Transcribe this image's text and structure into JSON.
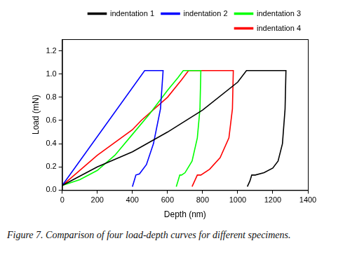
{
  "chart_data": {
    "type": "line",
    "x_label": "Depth (nm)",
    "y_label": "Load (mN)",
    "xlim": [
      0,
      1400
    ],
    "xticks": [
      0,
      200,
      400,
      600,
      800,
      1000,
      1200,
      1400
    ],
    "ylim": [
      0,
      1.3
    ],
    "yticks": [
      {
        "value": 0,
        "label": "0.0"
      },
      0.2,
      0.4,
      0.6,
      0.8,
      {
        "value": 1,
        "label": "1.0"
      },
      1.2
    ],
    "grid": false,
    "legend": "top-right",
    "series": [
      {
        "name": "indentation 1",
        "color": "#000000",
        "x": [
          0,
          200,
          400,
          600,
          800,
          1000,
          1050,
          1275,
          1270,
          1255,
          1230,
          1200,
          1150,
          1100,
          1080,
          1070,
          1055
        ],
        "values": [
          0.04,
          0.2,
          0.33,
          0.5,
          0.69,
          0.93,
          1.03,
          1.03,
          0.7,
          0.4,
          0.25,
          0.19,
          0.15,
          0.13,
          0.13,
          0.08,
          0.03
        ]
      },
      {
        "name": "indentation 2",
        "color": "#0000ff",
        "x": [
          0,
          470,
          575,
          560,
          520,
          480,
          440,
          420,
          410,
          400
        ],
        "values": [
          0.04,
          1.03,
          1.03,
          0.7,
          0.4,
          0.22,
          0.14,
          0.13,
          0.08,
          0.03
        ]
      },
      {
        "name": "indentation 3",
        "color": "#00ff00",
        "x": [
          0,
          100,
          200,
          300,
          400,
          500,
          600,
          660,
          690,
          790,
          785,
          770,
          740,
          700,
          680,
          670,
          660,
          650
        ],
        "values": [
          0.04,
          0.09,
          0.17,
          0.3,
          0.48,
          0.66,
          0.86,
          0.97,
          1.03,
          1.03,
          0.7,
          0.45,
          0.25,
          0.15,
          0.13,
          0.13,
          0.08,
          0.03
        ]
      },
      {
        "name": "indentation 4",
        "color": "#ff0000",
        "x": [
          0,
          200,
          400,
          450,
          600,
          680,
          720,
          975,
          970,
          950,
          900,
          840,
          790,
          770,
          755,
          740
        ],
        "values": [
          0.04,
          0.3,
          0.52,
          0.6,
          0.8,
          0.95,
          1.03,
          1.03,
          0.7,
          0.45,
          0.28,
          0.18,
          0.13,
          0.13,
          0.08,
          0.03
        ]
      }
    ]
  },
  "caption": "Figure 7. Comparison of four load-depth curves for different specimens."
}
